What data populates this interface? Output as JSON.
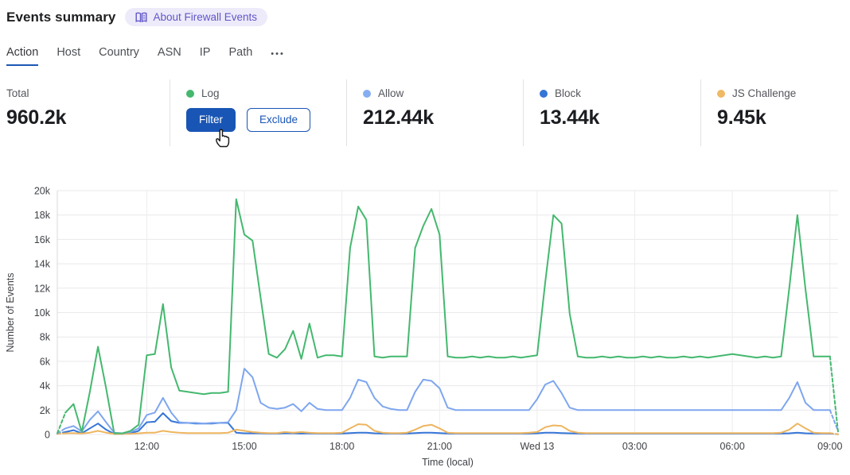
{
  "header": {
    "title": "Events summary",
    "about_badge": "About Firewall Events"
  },
  "tabs": {
    "items": [
      "Action",
      "Host",
      "Country",
      "ASN",
      "IP",
      "Path"
    ],
    "active": "Action",
    "more_icon": "•••"
  },
  "cards": [
    {
      "id": "total",
      "label": "Total",
      "value": "960.2k"
    },
    {
      "id": "log",
      "label": "Log",
      "dot_color": "#44b86e",
      "filter_label": "Filter",
      "exclude_label": "Exclude"
    },
    {
      "id": "allow",
      "label": "Allow",
      "dot_color": "#86adf2",
      "value": "212.44k"
    },
    {
      "id": "block",
      "label": "Block",
      "dot_color": "#3575d6",
      "value": "13.44k"
    },
    {
      "id": "js_challenge",
      "label": "JS Challenge",
      "dot_color": "#f0b965",
      "value": "9.45k"
    }
  ],
  "colors": {
    "accent_blue": "#1955b4",
    "tab_underline": "#1c57b5",
    "badge_bg": "#edebfa",
    "badge_text": "#6156c8",
    "grid_h": "#e9e9ed",
    "grid_v": "#ededf1",
    "axis_line": "#d8d8dc",
    "tick_text": "#3f4146"
  },
  "chart_data": {
    "type": "line",
    "xlabel": "Time (local)",
    "ylabel": "Number of Events",
    "ylim": [
      0,
      20000
    ],
    "ytick_step": 2000,
    "ytick_labels": [
      "0",
      "2k",
      "4k",
      "6k",
      "8k",
      "10k",
      "12k",
      "14k",
      "16k",
      "18k",
      "20k"
    ],
    "grid": true,
    "partial_ends_dashed": true,
    "x": [
      "09:15",
      "09:30",
      "09:45",
      "10:00",
      "10:15",
      "10:30",
      "10:45",
      "11:00",
      "11:15",
      "11:30",
      "11:45",
      "12:00",
      "12:15",
      "12:30",
      "12:45",
      "13:00",
      "13:15",
      "13:30",
      "13:45",
      "14:00",
      "14:15",
      "14:30",
      "14:45",
      "15:00",
      "15:15",
      "15:30",
      "15:45",
      "16:00",
      "16:15",
      "16:30",
      "16:45",
      "17:00",
      "17:15",
      "17:30",
      "17:45",
      "18:00",
      "18:15",
      "18:30",
      "18:45",
      "19:00",
      "19:15",
      "19:30",
      "19:45",
      "20:00",
      "20:15",
      "20:30",
      "20:45",
      "21:00",
      "21:15",
      "21:30",
      "21:45",
      "22:00",
      "22:15",
      "22:30",
      "22:45",
      "23:00",
      "23:15",
      "23:30",
      "23:45",
      "Wed 13 00:00",
      "00:15",
      "00:30",
      "00:45",
      "01:00",
      "01:15",
      "01:30",
      "01:45",
      "02:00",
      "02:15",
      "02:30",
      "02:45",
      "03:00",
      "03:15",
      "03:30",
      "03:45",
      "04:00",
      "04:15",
      "04:30",
      "04:45",
      "05:00",
      "05:15",
      "05:30",
      "05:45",
      "06:00",
      "06:15",
      "06:30",
      "06:45",
      "07:00",
      "07:15",
      "07:30",
      "07:45",
      "08:00",
      "08:15",
      "08:30",
      "08:45",
      "09:00",
      "09:15"
    ],
    "xticks": {
      "indices": [
        11,
        23,
        35,
        47,
        59,
        71,
        83,
        95
      ],
      "labels": [
        "12:00",
        "15:00",
        "18:00",
        "21:00",
        "Wed 13",
        "03:00",
        "06:00",
        "09:00"
      ]
    },
    "series": [
      {
        "name": "Log",
        "color": "#44b86e",
        "values": [
          100,
          1800,
          2500,
          200,
          3500,
          7200,
          3800,
          100,
          100,
          300,
          800,
          6500,
          6600,
          10700,
          5500,
          3600,
          3500,
          3400,
          3300,
          3400,
          3400,
          3500,
          19300,
          16400,
          15900,
          11200,
          6600,
          6300,
          7000,
          8500,
          6200,
          9100,
          6300,
          6500,
          6500,
          6400,
          15300,
          18700,
          17600,
          6400,
          6300,
          6400,
          6400,
          6400,
          15300,
          17100,
          18500,
          16400,
          6400,
          6300,
          6300,
          6400,
          6300,
          6400,
          6300,
          6300,
          6400,
          6300,
          6400,
          6500,
          12500,
          18000,
          17300,
          9900,
          6400,
          6300,
          6300,
          6400,
          6300,
          6400,
          6300,
          6300,
          6400,
          6300,
          6400,
          6300,
          6300,
          6400,
          6300,
          6400,
          6300,
          6400,
          6500,
          6600,
          6500,
          6400,
          6300,
          6400,
          6300,
          6400,
          12000,
          18000,
          11900,
          6400,
          6400,
          6400,
          200
        ]
      },
      {
        "name": "Allow",
        "color": "#7ea6ef",
        "values": [
          100,
          500,
          700,
          250,
          1200,
          1900,
          1000,
          150,
          100,
          200,
          500,
          1600,
          1800,
          3000,
          1800,
          1000,
          950,
          950,
          900,
          950,
          950,
          1000,
          2000,
          5400,
          4700,
          2600,
          2200,
          2100,
          2200,
          2500,
          1900,
          2600,
          2100,
          2000,
          2000,
          2000,
          3000,
          4500,
          4300,
          3000,
          2300,
          2100,
          2000,
          2000,
          3500,
          4500,
          4400,
          3800,
          2200,
          2000,
          2000,
          2000,
          2000,
          2000,
          2000,
          2000,
          2000,
          2000,
          2000,
          2900,
          4100,
          4400,
          3400,
          2200,
          2000,
          2000,
          2000,
          2000,
          2000,
          2000,
          2000,
          2000,
          2000,
          2000,
          2000,
          2000,
          2000,
          2000,
          2000,
          2000,
          2000,
          2000,
          2000,
          2000,
          2000,
          2000,
          2000,
          2000,
          2000,
          2000,
          3000,
          4300,
          2600,
          2000,
          2000,
          2000,
          300
        ]
      },
      {
        "name": "Block",
        "color": "#3575d6",
        "values": [
          50,
          200,
          350,
          100,
          500,
          900,
          400,
          50,
          50,
          100,
          300,
          1000,
          1050,
          1750,
          1100,
          950,
          950,
          900,
          900,
          900,
          950,
          950,
          150,
          100,
          100,
          100,
          80,
          80,
          100,
          100,
          80,
          100,
          80,
          80,
          80,
          80,
          120,
          150,
          150,
          100,
          80,
          80,
          80,
          80,
          120,
          150,
          150,
          120,
          80,
          80,
          80,
          80,
          80,
          80,
          80,
          80,
          80,
          80,
          80,
          100,
          150,
          150,
          120,
          100,
          80,
          80,
          80,
          80,
          80,
          80,
          80,
          80,
          80,
          80,
          80,
          80,
          80,
          80,
          80,
          80,
          80,
          80,
          80,
          80,
          80,
          80,
          80,
          80,
          80,
          80,
          100,
          150,
          100,
          80,
          80,
          80,
          20
        ]
      },
      {
        "name": "JS Challenge",
        "color": "#eeb55f",
        "values": [
          50,
          100,
          120,
          80,
          150,
          300,
          150,
          50,
          50,
          60,
          100,
          150,
          150,
          300,
          200,
          150,
          120,
          120,
          120,
          120,
          120,
          150,
          400,
          300,
          200,
          150,
          120,
          120,
          200,
          150,
          200,
          150,
          120,
          120,
          120,
          150,
          500,
          850,
          800,
          300,
          150,
          120,
          120,
          150,
          400,
          700,
          800,
          500,
          150,
          120,
          120,
          120,
          120,
          120,
          120,
          120,
          120,
          120,
          150,
          200,
          600,
          750,
          700,
          300,
          150,
          120,
          120,
          120,
          120,
          120,
          120,
          120,
          120,
          120,
          120,
          120,
          120,
          120,
          120,
          120,
          120,
          120,
          120,
          120,
          120,
          120,
          120,
          120,
          120,
          150,
          400,
          900,
          500,
          150,
          120,
          120,
          20
        ]
      }
    ]
  }
}
